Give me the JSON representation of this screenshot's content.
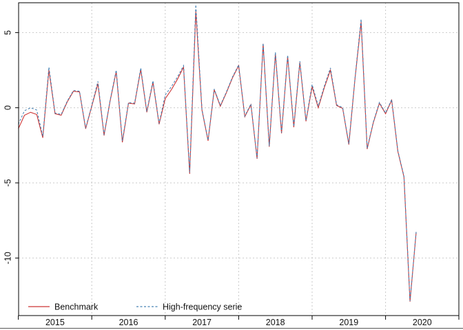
{
  "window": {
    "background": "#ffffff"
  },
  "axes": {
    "grid_color": "#c9c9c9",
    "axis_color": "#000000",
    "text_color": "#111111",
    "bottom_rule_color": "#555555"
  },
  "legend": {
    "items": [
      {
        "label": "Benchmark",
        "swatch": "solid-red"
      },
      {
        "label": "High-frequency serie",
        "swatch": "dashed-blue"
      }
    ]
  },
  "chart_data": {
    "type": "line",
    "title": "",
    "xlabel": "",
    "ylabel": "",
    "frequency": "monthly",
    "x_start": "2015-01",
    "x_end": "2020-06",
    "xlim_years": [
      2015,
      2021
    ],
    "ylim": [
      -13.8,
      7.0
    ],
    "grid": true,
    "legend_position": "bottom-left-inside",
    "x_tick_years": [
      2015,
      2016,
      2017,
      2018,
      2019,
      2020
    ],
    "x_tick_labels": [
      "2015",
      "2016",
      "2017",
      "2018",
      "2019",
      "2020"
    ],
    "y_ticks": [
      5,
      0,
      -5,
      -10
    ],
    "y_tick_labels": [
      "5",
      "0",
      "-5",
      "-10"
    ],
    "series": [
      {
        "name": "Benchmark",
        "color": "#cc3333",
        "line_style": "solid",
        "values": [
          -1.4,
          -0.5,
          -0.3,
          -0.45,
          -2.0,
          2.5,
          -0.4,
          -0.5,
          0.4,
          1.1,
          1.05,
          -1.4,
          0.1,
          1.6,
          -1.85,
          0.45,
          2.4,
          -2.3,
          0.3,
          0.25,
          2.55,
          -0.3,
          1.7,
          -1.1,
          0.6,
          1.2,
          1.9,
          2.7,
          -4.4,
          6.4,
          -0.15,
          -2.2,
          1.2,
          0.1,
          1.0,
          2.0,
          2.8,
          -0.6,
          0.2,
          -3.4,
          4.25,
          -2.6,
          3.6,
          -1.7,
          3.4,
          -1.3,
          3.0,
          -0.9,
          1.4,
          0.0,
          1.35,
          2.5,
          0.15,
          -0.05,
          -2.45,
          1.9,
          5.7,
          -2.75,
          -1.0,
          0.3,
          -0.4,
          0.5,
          -2.9,
          -4.6,
          -12.9,
          -8.3
        ]
      },
      {
        "name": "High-frequency serie",
        "color": "#4682b4",
        "line_style": "dashed",
        "values": [
          -1.1,
          -0.2,
          0.0,
          -0.15,
          -1.9,
          2.7,
          -0.35,
          -0.45,
          0.45,
          1.15,
          1.1,
          -1.35,
          0.15,
          1.75,
          -1.8,
          0.5,
          2.5,
          -2.2,
          0.35,
          0.3,
          2.65,
          -0.25,
          1.8,
          -1.05,
          0.85,
          1.4,
          2.05,
          2.8,
          -4.3,
          6.85,
          -0.1,
          -2.15,
          1.25,
          0.15,
          1.05,
          2.05,
          2.85,
          -0.55,
          0.25,
          -3.35,
          4.3,
          -2.55,
          3.7,
          -1.65,
          3.5,
          -1.25,
          3.1,
          -0.85,
          1.55,
          0.1,
          1.45,
          2.65,
          0.2,
          0.0,
          -2.4,
          1.95,
          5.9,
          -2.7,
          -0.95,
          0.35,
          -0.35,
          0.55,
          -2.85,
          -4.55,
          -12.85,
          -8.25
        ]
      }
    ]
  }
}
